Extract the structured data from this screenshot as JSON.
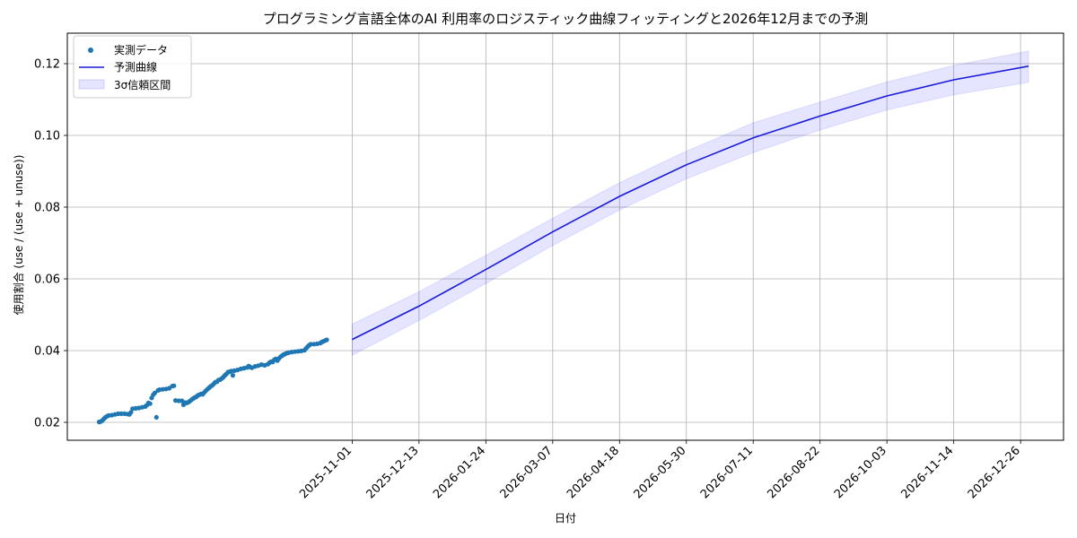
{
  "chart_data": {
    "type": "line",
    "title": "プログラミング言語全体のAI 利用率のロジスティック曲線フィッティングと2026年12月までの予測",
    "xlabel": "日付",
    "ylabel": "使用割合 (use / (use + unuse))",
    "xlim": [
      "2025-05-06",
      "2027-01-22"
    ],
    "ylim": [
      0.015,
      0.1285
    ],
    "grid": true,
    "legend_position": "top-left",
    "x_ticks": [
      "2025-11-01",
      "2025-12-13",
      "2026-01-24",
      "2026-03-07",
      "2026-04-18",
      "2026-05-30",
      "2026-07-11",
      "2026-08-22",
      "2026-10-03",
      "2026-11-14",
      "2026-12-26"
    ],
    "y_ticks": [
      "0.02",
      "0.04",
      "0.06",
      "0.08",
      "0.10",
      "0.12"
    ],
    "colors": {
      "observed": "#1f77b4",
      "predicted": "#1a1adb",
      "band": "#0000ff"
    },
    "legend": [
      "実測データ",
      "予測曲線",
      "3σ信頼区間"
    ],
    "series": [
      {
        "name": "実測データ",
        "kind": "scatter",
        "points": [
          [
            "2025-05-26",
            0.0201
          ],
          [
            "2025-05-27",
            0.0202
          ],
          [
            "2025-05-28",
            0.0205
          ],
          [
            "2025-05-29",
            0.021
          ],
          [
            "2025-05-30",
            0.0214
          ],
          [
            "2025-05-31",
            0.0217
          ],
          [
            "2025-06-01",
            0.0219
          ],
          [
            "2025-06-03",
            0.022
          ],
          [
            "2025-06-05",
            0.0222
          ],
          [
            "2025-06-07",
            0.0224
          ],
          [
            "2025-06-09",
            0.0224
          ],
          [
            "2025-06-11",
            0.0224
          ],
          [
            "2025-06-13",
            0.0223
          ],
          [
            "2025-06-14",
            0.0222
          ],
          [
            "2025-06-15",
            0.0228
          ],
          [
            "2025-06-16",
            0.0238
          ],
          [
            "2025-06-18",
            0.0239
          ],
          [
            "2025-06-20",
            0.024
          ],
          [
            "2025-06-22",
            0.0242
          ],
          [
            "2025-06-24",
            0.0244
          ],
          [
            "2025-06-25",
            0.0248
          ],
          [
            "2025-06-26",
            0.0254
          ],
          [
            "2025-06-27",
            0.0252
          ],
          [
            "2025-06-28",
            0.0268
          ],
          [
            "2025-06-29",
            0.0277
          ],
          [
            "2025-06-30",
            0.0282
          ],
          [
            "2025-07-01",
            0.0214
          ],
          [
            "2025-07-02",
            0.0289
          ],
          [
            "2025-07-03",
            0.0291
          ],
          [
            "2025-07-05",
            0.0292
          ],
          [
            "2025-07-07",
            0.0293
          ],
          [
            "2025-07-09",
            0.0295
          ],
          [
            "2025-07-11",
            0.0301
          ],
          [
            "2025-07-12",
            0.0302
          ],
          [
            "2025-07-13",
            0.0261
          ],
          [
            "2025-07-15",
            0.026
          ],
          [
            "2025-07-17",
            0.026
          ],
          [
            "2025-07-18",
            0.0249
          ],
          [
            "2025-07-19",
            0.0255
          ],
          [
            "2025-07-20",
            0.0254
          ],
          [
            "2025-07-21",
            0.0256
          ],
          [
            "2025-07-22",
            0.0259
          ],
          [
            "2025-07-23",
            0.0263
          ],
          [
            "2025-07-24",
            0.0266
          ],
          [
            "2025-07-25",
            0.0269
          ],
          [
            "2025-07-26",
            0.0271
          ],
          [
            "2025-07-27",
            0.0275
          ],
          [
            "2025-07-28",
            0.0277
          ],
          [
            "2025-07-29",
            0.0279
          ],
          [
            "2025-07-30",
            0.0278
          ],
          [
            "2025-07-31",
            0.0283
          ],
          [
            "2025-08-01",
            0.0288
          ],
          [
            "2025-08-02",
            0.0292
          ],
          [
            "2025-08-03",
            0.0296
          ],
          [
            "2025-08-04",
            0.03
          ],
          [
            "2025-08-05",
            0.0303
          ],
          [
            "2025-08-06",
            0.0307
          ],
          [
            "2025-08-07",
            0.0312
          ],
          [
            "2025-08-08",
            0.0313
          ],
          [
            "2025-08-09",
            0.0318
          ],
          [
            "2025-08-10",
            0.0319
          ],
          [
            "2025-08-11",
            0.0322
          ],
          [
            "2025-08-12",
            0.0326
          ],
          [
            "2025-08-13",
            0.0331
          ],
          [
            "2025-08-14",
            0.0335
          ],
          [
            "2025-08-15",
            0.034
          ],
          [
            "2025-08-16",
            0.0341
          ],
          [
            "2025-08-17",
            0.0343
          ],
          [
            "2025-08-18",
            0.0331
          ],
          [
            "2025-08-19",
            0.0344
          ],
          [
            "2025-08-21",
            0.0346
          ],
          [
            "2025-08-23",
            0.0349
          ],
          [
            "2025-08-25",
            0.0351
          ],
          [
            "2025-08-27",
            0.0353
          ],
          [
            "2025-08-28",
            0.0357
          ],
          [
            "2025-08-29",
            0.0354
          ],
          [
            "2025-08-30",
            0.0352
          ],
          [
            "2025-09-01",
            0.0356
          ],
          [
            "2025-09-03",
            0.0358
          ],
          [
            "2025-09-05",
            0.0361
          ],
          [
            "2025-09-07",
            0.0359
          ],
          [
            "2025-09-09",
            0.0362
          ],
          [
            "2025-09-10",
            0.0366
          ],
          [
            "2025-09-11",
            0.0369
          ],
          [
            "2025-09-12",
            0.0368
          ],
          [
            "2025-09-13",
            0.0374
          ],
          [
            "2025-09-14",
            0.0377
          ],
          [
            "2025-09-15",
            0.0372
          ],
          [
            "2025-09-16",
            0.0378
          ],
          [
            "2025-09-17",
            0.0383
          ],
          [
            "2025-09-18",
            0.0386
          ],
          [
            "2025-09-19",
            0.0389
          ],
          [
            "2025-09-20",
            0.0391
          ],
          [
            "2025-09-21",
            0.0393
          ],
          [
            "2025-09-22",
            0.0394
          ],
          [
            "2025-09-24",
            0.0396
          ],
          [
            "2025-09-26",
            0.0397
          ],
          [
            "2025-09-28",
            0.0398
          ],
          [
            "2025-09-30",
            0.0399
          ],
          [
            "2025-10-02",
            0.0401
          ],
          [
            "2025-10-03",
            0.0406
          ],
          [
            "2025-10-04",
            0.0411
          ],
          [
            "2025-10-05",
            0.0415
          ],
          [
            "2025-10-06",
            0.0418
          ],
          [
            "2025-10-08",
            0.0418
          ],
          [
            "2025-10-10",
            0.0419
          ],
          [
            "2025-10-12",
            0.0421
          ],
          [
            "2025-10-13",
            0.0424
          ],
          [
            "2025-10-14",
            0.0426
          ],
          [
            "2025-10-15",
            0.0428
          ],
          [
            "2025-10-16",
            0.043
          ]
        ]
      },
      {
        "name": "予測曲線",
        "kind": "line",
        "points": [
          [
            "2025-11-01",
            0.0431
          ],
          [
            "2025-12-13",
            0.0524
          ],
          [
            "2026-01-24",
            0.0626
          ],
          [
            "2026-03-07",
            0.0731
          ],
          [
            "2026-04-18",
            0.083
          ],
          [
            "2026-05-30",
            0.0918
          ],
          [
            "2026-07-11",
            0.0993
          ],
          [
            "2026-08-22",
            0.1054
          ],
          [
            "2026-10-03",
            0.111
          ],
          [
            "2026-11-14",
            0.1155
          ],
          [
            "2026-12-31",
            0.1193
          ]
        ]
      },
      {
        "name": "3σ信頼区間",
        "kind": "band",
        "upper": [
          [
            "2025-11-01",
            0.0474
          ],
          [
            "2025-12-13",
            0.0564
          ],
          [
            "2026-01-24",
            0.0666
          ],
          [
            "2026-03-07",
            0.0769
          ],
          [
            "2026-04-18",
            0.0868
          ],
          [
            "2026-05-30",
            0.0956
          ],
          [
            "2026-07-11",
            0.1035
          ],
          [
            "2026-08-22",
            0.1093
          ],
          [
            "2026-10-03",
            0.1149
          ],
          [
            "2026-11-14",
            0.1195
          ],
          [
            "2026-12-31",
            0.1235
          ]
        ],
        "lower": [
          [
            "2025-11-01",
            0.0387
          ],
          [
            "2025-12-13",
            0.0484
          ],
          [
            "2026-01-24",
            0.0587
          ],
          [
            "2026-03-07",
            0.0693
          ],
          [
            "2026-04-18",
            0.0792
          ],
          [
            "2026-05-30",
            0.0879
          ],
          [
            "2026-07-11",
            0.0952
          ],
          [
            "2026-08-22",
            0.1015
          ],
          [
            "2026-10-03",
            0.1071
          ],
          [
            "2026-11-14",
            0.1113
          ],
          [
            "2026-12-31",
            0.1148
          ]
        ]
      }
    ]
  }
}
